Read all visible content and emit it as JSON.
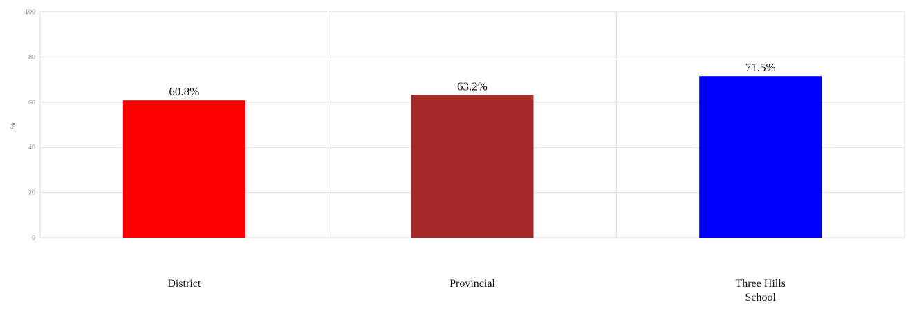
{
  "chart_data": {
    "type": "bar",
    "categories": [
      "District",
      "Provincial",
      "Three Hills School"
    ],
    "category_lines": [
      [
        "District"
      ],
      [
        "Provincial"
      ],
      [
        "Three Hills",
        "School"
      ]
    ],
    "values": [
      60.8,
      63.2,
      71.5
    ],
    "data_labels": [
      "60.8%",
      "63.2%",
      "71.5%"
    ],
    "colors": [
      "#ff0000",
      "#a52a2a",
      "#0000ff"
    ],
    "ylabel": "%",
    "ylim": [
      0,
      100
    ],
    "yticks": [
      0,
      20,
      40,
      60,
      80,
      100
    ],
    "grid": true,
    "legend": "none"
  }
}
